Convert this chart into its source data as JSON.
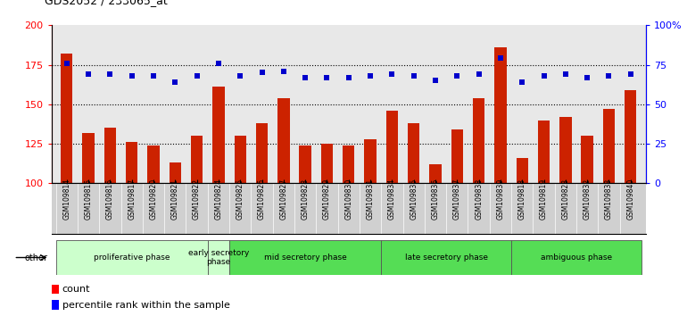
{
  "title": "GDS2052 / 233065_at",
  "samples": [
    "GSM109814",
    "GSM109815",
    "GSM109816",
    "GSM109817",
    "GSM109820",
    "GSM109821",
    "GSM109822",
    "GSM109824",
    "GSM109825",
    "GSM109826",
    "GSM109827",
    "GSM109828",
    "GSM109829",
    "GSM109830",
    "GSM109831",
    "GSM109834",
    "GSM109835",
    "GSM109836",
    "GSM109837",
    "GSM109838",
    "GSM109839",
    "GSM109818",
    "GSM109819",
    "GSM109823",
    "GSM109832",
    "GSM109833",
    "GSM109840"
  ],
  "counts": [
    182,
    132,
    135,
    126,
    124,
    113,
    130,
    161,
    130,
    138,
    154,
    124,
    125,
    124,
    128,
    146,
    138,
    112,
    134,
    154,
    186,
    116,
    140,
    142,
    130,
    147,
    159
  ],
  "percentiles": [
    76,
    69,
    69,
    68,
    68,
    64,
    68,
    76,
    68,
    70,
    71,
    67,
    67,
    67,
    68,
    69,
    68,
    65,
    68,
    69,
    79,
    64,
    68,
    69,
    67,
    68,
    69
  ],
  "phase_defs": [
    {
      "name": "proliferative phase",
      "start": 0,
      "end": 7,
      "color": "#ccffcc"
    },
    {
      "name": "early secretory\nphase",
      "start": 7,
      "end": 8,
      "color": "#ccffcc"
    },
    {
      "name": "mid secretory phase",
      "start": 8,
      "end": 15,
      "color": "#55dd55"
    },
    {
      "name": "late secretory phase",
      "start": 15,
      "end": 21,
      "color": "#55dd55"
    },
    {
      "name": "ambiguous phase",
      "start": 21,
      "end": 27,
      "color": "#55dd55"
    }
  ],
  "bar_color": "#cc2200",
  "dot_color": "#0000cc",
  "ylim_left": [
    100,
    200
  ],
  "ylim_right": [
    0,
    100
  ],
  "yticks_left": [
    100,
    125,
    150,
    175,
    200
  ],
  "yticks_right": [
    0,
    25,
    50,
    75,
    100
  ],
  "ytick_labels_right": [
    "0",
    "25",
    "50",
    "75",
    "100%"
  ],
  "xaxis_bg": "#d0d0d0",
  "plot_bg": "#e8e8e8"
}
